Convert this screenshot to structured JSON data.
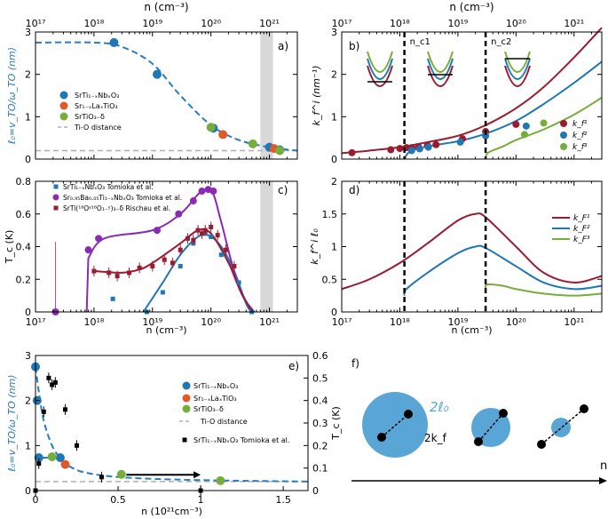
{
  "colors": {
    "blue": "#1f77b4",
    "dashBlue": "#2a7bbf",
    "orange": "#e0592a",
    "green": "#77ad3a",
    "purple": "#8a2ab5",
    "maroon": "#9b1b30",
    "lightBlue": "#59a6d6",
    "grey": "#b0b0b0",
    "shade": "#d8d8d8",
    "black": "#000000"
  },
  "chart_data": [
    {
      "panel": "a",
      "type": "scatter",
      "panel_label": "a)",
      "top_axis_label": "n (cm⁻³)",
      "ylabel": "ℓ₀=v_TO/ω_TO (nm)",
      "xscale": "log",
      "xlim": [
        1e+17,
        3e+21
      ],
      "ylim": [
        0,
        3
      ],
      "xticks": [
        "10¹⁷",
        "10¹⁸",
        "10¹⁹",
        "10²⁰",
        "10²¹"
      ],
      "yticks": [
        "0",
        "1",
        "2",
        "3"
      ],
      "legend": [
        "SrTi₁₋ₓNbₓO₃",
        "Sr₁₋ₓLaₓTiO₃",
        "SrTiO₃₋δ",
        "Ti-O distance"
      ],
      "series": [
        {
          "name": "SrTi1-xNb_xO3",
          "x": [
            2.2e+18,
            1.2e+19,
            1.1e+20,
            1e+21,
            1.5e+21
          ],
          "y": [
            2.75,
            2.0,
            0.73,
            0.28,
            0.22
          ]
        },
        {
          "name": "Sr1-xLa_xTiO3",
          "x": [
            1.6e+20,
            1.2e+21
          ],
          "y": [
            0.58,
            0.25
          ]
        },
        {
          "name": "SrTiO3-delta",
          "x": [
            1e+20,
            5.2e+20,
            1.5e+21
          ],
          "y": [
            0.75,
            0.36,
            0.2
          ]
        }
      ],
      "fit_curve": {
        "x": [
          1e+17,
          1e+18,
          3e+18,
          1e+19,
          3e+19,
          1e+20,
          3e+20,
          1e+21,
          3e+21
        ],
        "y": [
          2.75,
          2.75,
          2.65,
          2.25,
          1.5,
          0.8,
          0.45,
          0.28,
          0.2
        ]
      },
      "ti_o_distance": 0.2,
      "shaded_band": [
        7e+20,
        1.15e+21
      ]
    },
    {
      "panel": "b",
      "type": "line",
      "panel_label": "b)",
      "top_axis_label": "n (cm⁻³)",
      "ylabel": "k_f^i (nm⁻¹)",
      "xscale": "log",
      "xlim": [
        1e+17,
        3e+21
      ],
      "ylim": [
        0,
        3
      ],
      "xticks": [
        "10¹⁷",
        "10¹⁸",
        "10¹⁹",
        "10²⁰",
        "10²¹"
      ],
      "yticks": [
        "0",
        "1",
        "2",
        "3"
      ],
      "nc1_label": "n_c1",
      "nc2_label": "n_c2",
      "nc1": 1.2e+18,
      "nc2": 3e+19,
      "legend": [
        "k_f¹",
        "k_f²",
        "k_f³"
      ],
      "series": [
        {
          "name": "kf1",
          "x": [
            1e+17,
            3e+17,
            1e+18,
            3e+18,
            1e+19,
            3e+19,
            1e+20,
            3e+20,
            1e+21,
            3e+21
          ],
          "y": [
            0.14,
            0.2,
            0.28,
            0.4,
            0.55,
            0.8,
            1.2,
            1.7,
            2.4,
            3.1
          ]
        },
        {
          "name": "kf2",
          "x": [
            1.2e+18,
            1.5e+18,
            3e+18,
            1e+19,
            3e+19,
            1e+20,
            3e+20,
            1e+21,
            3e+21
          ],
          "y": [
            0.0,
            0.18,
            0.3,
            0.42,
            0.6,
            0.9,
            1.3,
            1.8,
            2.3
          ]
        },
        {
          "name": "kf3",
          "x": [
            3e+19,
            3.3e+19,
            6e+19,
            1e+20,
            3e+20,
            1e+21,
            3e+21
          ],
          "y": [
            0.0,
            0.15,
            0.3,
            0.45,
            0.7,
            1.05,
            1.45
          ]
        }
      ],
      "points": [
        {
          "name": "kf1",
          "x": [
            1.5e+17,
            7e+17,
            1e+18,
            1.3e+18,
            1.6e+18,
            2.1e+18,
            3e+18,
            4.2e+18,
            1.2e+19,
            3e+19,
            1e+20
          ],
          "y": [
            0.15,
            0.22,
            0.25,
            0.27,
            0.27,
            0.29,
            0.32,
            0.34,
            0.48,
            0.65,
            0.82
          ]
        },
        {
          "name": "kf2",
          "x": [
            1.6e+18,
            2.2e+18,
            3.1e+18,
            1.1e+19,
            3e+19,
            1.5e+20
          ],
          "y": [
            0.2,
            0.24,
            0.28,
            0.4,
            0.55,
            0.78
          ]
        },
        {
          "name": "kf3",
          "x": [
            1.4e+20,
            3e+20
          ],
          "y": [
            0.58,
            0.85
          ]
        }
      ]
    },
    {
      "panel": "c",
      "type": "scatter",
      "panel_label": "c)",
      "xlabel": "n (cm⁻³)",
      "ylabel": "T_c (K)",
      "xscale": "log",
      "xlim": [
        1e+17,
        3e+21
      ],
      "ylim": [
        0,
        0.8
      ],
      "xticks": [
        "10¹⁷",
        "10¹⁸",
        "10¹⁹",
        "10²⁰",
        "10²¹"
      ],
      "yticks": [
        "0",
        "0.2",
        "0.4",
        "0.6",
        "0.8"
      ],
      "legend": [
        "SrTi₁₋ₓNbₓO₃ Tomioka et al.",
        "Sr₀.₉₅Ba₀.₀₅Ti₁₋ₓNbₓO₃ Tomioka et al.",
        "SrTi(¹⁸Oʸ¹⁶O₁₋ʸ)₃₋δ Rischau et al."
      ],
      "series": [
        {
          "name": "SrTi1-xNbxO3",
          "x": [
            2.1e+18,
            8e+18,
            1.5e+19,
            3e+19,
            5e+19,
            8e+19,
            1e+20,
            1.5e+20,
            3e+20,
            5e+20
          ],
          "y": [
            0.08,
            0.0,
            0.12,
            0.28,
            0.42,
            0.48,
            0.46,
            0.35,
            0.18,
            0.0
          ]
        },
        {
          "name": "Sr0.95Ba0.05Ti1-xNbxO3",
          "x": [
            2.2e+17,
            8e+17,
            1.2e+18,
            1.2e+19,
            2.8e+19,
            5e+19,
            7e+19,
            9e+19,
            1.1e+20
          ],
          "y": [
            0.0,
            0.38,
            0.45,
            0.5,
            0.6,
            0.68,
            0.74,
            0.75,
            0.74
          ]
        },
        {
          "name": "SrTi(18O)3-delta",
          "x": [
            1e+18,
            1.8e+18,
            2.5e+18,
            4e+18,
            6e+18,
            1e+19,
            1.6e+19,
            2.2e+19,
            3e+19,
            4e+19,
            5e+19,
            6e+19,
            7e+19,
            8e+19,
            1e+20,
            1.3e+20,
            1.8e+20,
            2.5e+20
          ],
          "y": [
            0.25,
            0.24,
            0.22,
            0.24,
            0.27,
            0.28,
            0.32,
            0.3,
            0.38,
            0.45,
            0.44,
            0.5,
            0.48,
            0.5,
            0.52,
            0.47,
            0.38,
            0.28
          ]
        }
      ],
      "shaded_band": [
        7e+20,
        1.15e+21
      ]
    },
    {
      "panel": "d",
      "type": "line",
      "panel_label": "d)",
      "xlabel": "n (cm⁻³)",
      "ylabel": "k_f^i ℓ₀",
      "xscale": "log",
      "xlim": [
        1e+17,
        3e+21
      ],
      "ylim": [
        0,
        2
      ],
      "xticks": [
        "10¹⁷",
        "10¹⁸",
        "10¹⁹",
        "10²⁰",
        "10²¹"
      ],
      "yticks": [
        "0",
        "0.5",
        "1",
        "1.5",
        "2"
      ],
      "legend": [
        "k_F¹",
        "k_F²",
        "k_F³"
      ],
      "series": [
        {
          "name": "kF1",
          "x": [
            1e+17,
            3e+17,
            1e+18,
            3e+18,
            1e+19,
            2e+19,
            3e+19,
            1e+20,
            3e+20,
            1e+21,
            3e+21
          ],
          "y": [
            0.35,
            0.5,
            0.75,
            1.05,
            1.4,
            1.5,
            1.45,
            1.0,
            0.6,
            0.45,
            0.55
          ]
        },
        {
          "name": "kF2",
          "x": [
            1.2e+18,
            1.3e+18,
            3e+18,
            1e+19,
            2e+19,
            3e+19,
            1e+20,
            3e+20,
            1e+21,
            3e+21
          ],
          "y": [
            0.25,
            0.35,
            0.6,
            0.9,
            1.0,
            0.98,
            0.7,
            0.45,
            0.35,
            0.4
          ]
        },
        {
          "name": "kF3",
          "x": [
            3e+19,
            3.2e+19,
            6e+19,
            1e+20,
            3e+20,
            1e+21,
            3e+21
          ],
          "y": [
            0.35,
            0.42,
            0.4,
            0.35,
            0.28,
            0.25,
            0.28
          ]
        }
      ]
    },
    {
      "panel": "e",
      "type": "scatter",
      "panel_label": "e)",
      "xlabel": "n (10²¹cm⁻³)",
      "ylabel": "ℓ₀=v_TO/ω_TO (nm)",
      "y2label": "T_c (K)",
      "xlim": [
        0,
        1.65
      ],
      "ylim": [
        0,
        3
      ],
      "y2lim": [
        0,
        0.6
      ],
      "xticks": [
        "0",
        "0.5",
        "1",
        "1.5"
      ],
      "yticks": [
        "0",
        "1",
        "2",
        "3"
      ],
      "y2ticks": [
        "0",
        "0.1",
        "0.2",
        "0.3",
        "0.4",
        "0.5",
        "0.6"
      ],
      "legend": [
        "SrTi₁₋ₓNbₓO₃",
        "Sr₁₋ₓLaₓTiO₃",
        "SrTiO₃₋δ",
        "Ti-O distance",
        "SrTi₁₋ₓNbₓO₃ Tomioka et al."
      ],
      "series": [
        {
          "name": "SrTi1-xNb_xO3",
          "x": [
            0.0,
            0.01,
            0.02,
            0.15
          ],
          "y": [
            2.75,
            2.0,
            0.73,
            0.73
          ]
        },
        {
          "name": "Sr1-xLa_xTiO3",
          "x": [
            0.18
          ],
          "y": [
            0.58
          ]
        },
        {
          "name": "SrTiO3-delta",
          "x": [
            0.1,
            0.52,
            1.12
          ],
          "y": [
            0.75,
            0.36,
            0.22
          ]
        },
        {
          "name": "Tc_Tomioka",
          "x": [
            0.0,
            0.02,
            0.05,
            0.08,
            0.1,
            0.12,
            0.18,
            0.25,
            0.4,
            1.0
          ],
          "y": [
            0.0,
            0.12,
            0.35,
            0.5,
            0.47,
            0.48,
            0.36,
            0.2,
            0.06,
            0.0
          ]
        }
      ],
      "ti_o_distance": 0.2
    },
    {
      "panel": "f",
      "type": "diagram",
      "panel_label": "f)",
      "circle_label": "2ℓ₀",
      "kf_label": "2k_f",
      "axis_label": "n"
    }
  ]
}
